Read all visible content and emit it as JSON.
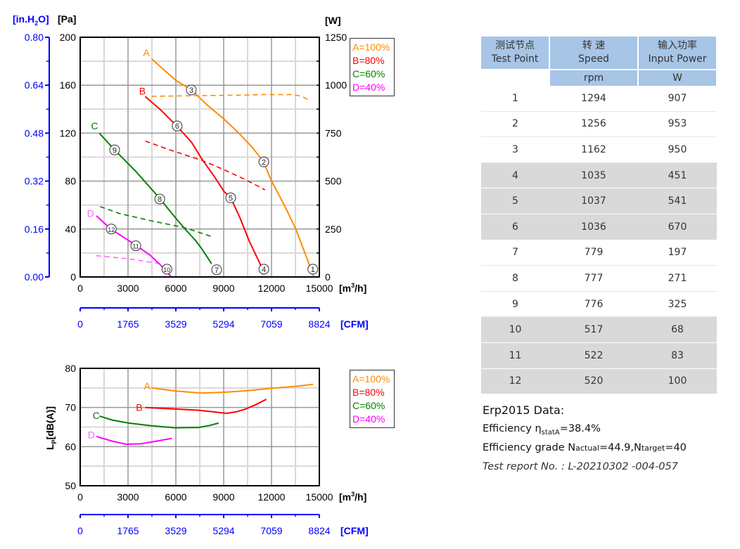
{
  "colors": {
    "A": "#ff8c00",
    "B": "#ff0000",
    "C": "#008000",
    "D": "#ff00ff",
    "D_label": "#ff66ff",
    "axis_blue": "#0000ff",
    "table_header": "#a7c5e6",
    "table_grey": "#d9d9d9"
  },
  "chart_data": [
    {
      "type": "line",
      "name": "pressure-power",
      "xlabel": "[m3/h]",
      "xlabel_parts": {
        "pre": "[m",
        "sup": "3",
        "post": "/h]"
      },
      "ylabel": "[Pa]",
      "ylabel_alt": {
        "pre": "[in.H",
        "sub": "2",
        "post": "O]"
      },
      "y2label": "[W]",
      "x2label": "[CFM]",
      "xlim": [
        0,
        15000
      ],
      "ylim": [
        0,
        200
      ],
      "y2lim": [
        0,
        1250
      ],
      "xticks": [
        0,
        3000,
        6000,
        9000,
        12000,
        15000
      ],
      "yticks": [
        0,
        40,
        80,
        120,
        160,
        200
      ],
      "y2ticks": [
        0,
        250,
        500,
        750,
        1000,
        1250
      ],
      "yalt_ticks": [
        "0.00",
        "0.16",
        "0.32",
        "0.48",
        "0.64",
        "0.80"
      ],
      "cfm_ticks": [
        "0",
        "1765",
        "3529",
        "5294",
        "7059",
        "8824"
      ],
      "grid": true,
      "legend": [
        "A=100%",
        "B=80%",
        "C=60%",
        "D=40%"
      ],
      "legend_position": "right-top",
      "series": [
        {
          "label": "A",
          "kind": "pressure",
          "label_at": [
            4150,
            187
          ],
          "points": [
            [
              4480,
              182
            ],
            [
              6000,
              164
            ],
            [
              6990,
              156
            ],
            [
              8000,
              143
            ],
            [
              9000,
              132
            ],
            [
              9990,
              119.5
            ],
            [
              10800,
              108
            ],
            [
              11500,
              96
            ],
            [
              12000,
              80
            ],
            [
              12800,
              60
            ],
            [
              13520,
              40
            ],
            [
              14320,
              12
            ],
            [
              14640,
              0.5
            ]
          ]
        },
        {
          "label": "A",
          "kind": "power",
          "points": [
            [
              4480,
              942
            ],
            [
              6000,
              944
            ],
            [
              8000,
              946
            ],
            [
              10000,
              948
            ],
            [
              11500,
              951
            ],
            [
              13360,
              951
            ],
            [
              13900,
              942
            ],
            [
              14400,
              920
            ]
          ]
        },
        {
          "label": "B",
          "kind": "pressure",
          "label_at": [
            3900,
            155
          ],
          "points": [
            [
              4080,
              150.5
            ],
            [
              5000,
              140
            ],
            [
              6080,
              125.7
            ],
            [
              7000,
              112
            ],
            [
              7600,
              99
            ],
            [
              8400,
              84
            ],
            [
              9040,
              71
            ],
            [
              9440,
              66
            ],
            [
              10000,
              50
            ],
            [
              10600,
              30
            ],
            [
              11280,
              11
            ],
            [
              11500,
              2
            ]
          ]
        },
        {
          "label": "B",
          "kind": "power",
          "points": [
            [
              4080,
              709
            ],
            [
              5500,
              666
            ],
            [
              7600,
              609
            ],
            [
              9000,
              560
            ],
            [
              10300,
              510
            ],
            [
              11600,
              454
            ]
          ]
        },
        {
          "label": "C",
          "kind": "pressure",
          "label_at": [
            900,
            126
          ],
          "points": [
            [
              1200,
              120
            ],
            [
              2160,
              106
            ],
            [
              3500,
              88
            ],
            [
              4960,
              66
            ],
            [
              6000,
              49
            ],
            [
              6640,
              39
            ],
            [
              7200,
              31
            ],
            [
              7600,
              24
            ],
            [
              8240,
              11
            ]
          ]
        },
        {
          "label": "C",
          "kind": "power",
          "points": [
            [
              1250,
              367
            ],
            [
              2500,
              330
            ],
            [
              4560,
              291
            ],
            [
              6500,
              258
            ],
            [
              8240,
              211
            ]
          ]
        },
        {
          "label": "D",
          "kind": "pressure",
          "label_at": [
            650,
            53
          ],
          "points": [
            [
              1010,
              51
            ],
            [
              1920,
              40
            ],
            [
              3440,
              27
            ],
            [
              4400,
              18
            ],
            [
              5040,
              10
            ],
            [
              5680,
              0.5
            ]
          ]
        },
        {
          "label": "D",
          "kind": "power",
          "points": [
            [
              1010,
              111
            ],
            [
              3000,
              95
            ],
            [
              5200,
              67
            ]
          ]
        }
      ],
      "test_points": [
        {
          "label": "1",
          "x": 14590,
          "y": 6.5
        },
        {
          "label": "2",
          "x": 11520,
          "y": 96
        },
        {
          "label": "3",
          "x": 6970,
          "y": 156
        },
        {
          "label": "4",
          "x": 11520,
          "y": 6.5
        },
        {
          "label": "5",
          "x": 9440,
          "y": 66
        },
        {
          "label": "6",
          "x": 6080,
          "y": 126
        },
        {
          "label": "7",
          "x": 8560,
          "y": 6
        },
        {
          "label": "8",
          "x": 4990,
          "y": 65
        },
        {
          "label": "9",
          "x": 2160,
          "y": 106
        },
        {
          "label": "10",
          "x": 5440,
          "y": 6.5
        },
        {
          "label": "11",
          "x": 3490,
          "y": 26
        },
        {
          "label": "12",
          "x": 1950,
          "y": 40
        }
      ]
    },
    {
      "type": "line",
      "name": "noise",
      "xlabel": "[m3/h]",
      "xlabel_parts": {
        "pre": "[m",
        "sup": "3",
        "post": "/h]"
      },
      "ylabel": "Lp[dB(A)]",
      "ylabel_parts": {
        "pre": "L",
        "sub": "P",
        "post": "[dB(A)]"
      },
      "x2label": "[CFM]",
      "xlim": [
        0,
        15000
      ],
      "ylim": [
        50,
        80
      ],
      "xticks": [
        0,
        3000,
        6000,
        9000,
        12000,
        15000
      ],
      "yticks": [
        50,
        60,
        70,
        80
      ],
      "cfm_ticks": [
        "0",
        "1765",
        "3529",
        "5294",
        "7059",
        "8824"
      ],
      "grid": true,
      "legend": [
        "A=100%",
        "B=80%",
        "C=60%",
        "D=40%"
      ],
      "legend_position": "right-top",
      "series": [
        {
          "label": "A",
          "label_at": [
            4200,
            75.5
          ],
          "points": [
            [
              4460,
              75
            ],
            [
              5970,
              74.2
            ],
            [
              7580,
              73.7
            ],
            [
              9050,
              73.9
            ],
            [
              10500,
              74.3
            ],
            [
              11980,
              74.9
            ],
            [
              13500,
              75.4
            ],
            [
              14610,
              75.9
            ]
          ]
        },
        {
          "label": "B",
          "label_at": [
            3700,
            70
          ],
          "points": [
            [
              4070,
              70
            ],
            [
              6000,
              69.6
            ],
            [
              7440,
              69.3
            ],
            [
              8500,
              68.8
            ],
            [
              9190,
              68.5
            ],
            [
              9800,
              68.9
            ],
            [
              10370,
              69.6
            ],
            [
              11000,
              70.7
            ],
            [
              11680,
              72.1
            ]
          ]
        },
        {
          "label": "C",
          "label_at": [
            1000,
            68
          ],
          "points": [
            [
              1215,
              67.8
            ],
            [
              2000,
              66.8
            ],
            [
              3050,
              66
            ],
            [
              4500,
              65.3
            ],
            [
              5970,
              64.8
            ],
            [
              7440,
              64.9
            ],
            [
              8100,
              65.4
            ],
            [
              8680,
              66
            ]
          ]
        },
        {
          "label": "D",
          "label_at": [
            700,
            63
          ],
          "points": [
            [
              1025,
              62.6
            ],
            [
              2000,
              61.4
            ],
            [
              2900,
              60.6
            ],
            [
              3780,
              60.7
            ],
            [
              4800,
              61.4
            ],
            [
              5750,
              62.1
            ]
          ]
        }
      ]
    }
  ],
  "table": {
    "headers": [
      {
        "cn": "测试节点",
        "en": "Test Point",
        "unit": ""
      },
      {
        "cn": "转 速",
        "en": "Speed",
        "unit": "rpm"
      },
      {
        "cn": "输入功率",
        "en": "Input Power",
        "unit": "W"
      }
    ],
    "rows": [
      {
        "point": "1",
        "speed": "1294",
        "power": "907"
      },
      {
        "point": "2",
        "speed": "1256",
        "power": "953"
      },
      {
        "point": "3",
        "speed": "1162",
        "power": "950"
      },
      {
        "point": "4",
        "speed": "1035",
        "power": "451"
      },
      {
        "point": "5",
        "speed": "1037",
        "power": "541"
      },
      {
        "point": "6",
        "speed": "1036",
        "power": "670"
      },
      {
        "point": "7",
        "speed": "779",
        "power": "197"
      },
      {
        "point": "8",
        "speed": "777",
        "power": "271"
      },
      {
        "point": "9",
        "speed": "776",
        "power": "325"
      },
      {
        "point": "10",
        "speed": "517",
        "power": "68"
      },
      {
        "point": "11",
        "speed": "522",
        "power": "83"
      },
      {
        "point": "12",
        "speed": "520",
        "power": "100"
      }
    ]
  },
  "erp": {
    "title": "Erp2015   Data:",
    "eff_label": "Efficiency η",
    "eff_sub": "statA",
    "eff_value": "=38.4%",
    "grade_label": "Efficiency grade  N",
    "actual_sub": "actual",
    "actual_value": "=44.9,N",
    "target_sub": "target",
    "target_value": "=40",
    "report": "Test report No.  : L-20210302 -004-057"
  }
}
